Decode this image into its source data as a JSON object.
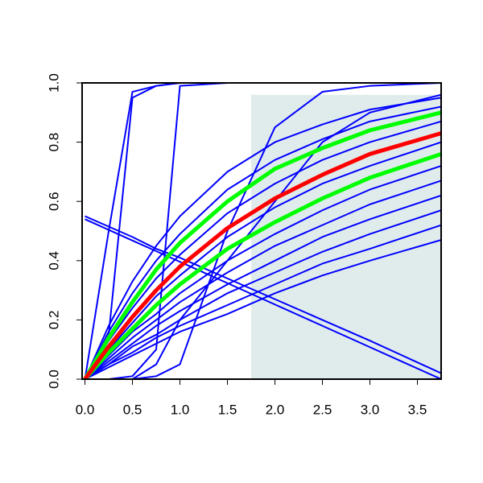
{
  "chart_data": {
    "type": "line",
    "x": [
      0,
      0.25,
      0.5,
      0.75,
      1,
      1.5,
      2,
      2.5,
      3,
      3.75
    ],
    "xlim": [
      -0.03,
      3.75
    ],
    "ylim": [
      0,
      1
    ],
    "xticks": [
      {
        "value": 0,
        "label": "0.0"
      },
      0.5,
      {
        "value": 1,
        "label": "1.0"
      },
      1.5,
      {
        "value": 2,
        "label": "2.0"
      },
      2.5,
      {
        "value": 3,
        "label": "3.0"
      },
      3.5
    ],
    "yticks": [
      {
        "value": 0,
        "label": "0.0"
      },
      0.2,
      0.4,
      0.6,
      0.8,
      {
        "value": 1,
        "label": "1.0"
      }
    ],
    "shaded_region": {
      "xlim": [
        1.75,
        3.75
      ],
      "ylim": [
        0,
        0.96
      ],
      "color": "#e0ecec"
    },
    "series": [
      {
        "color": "#0000ff",
        "values": [
          0,
          0.18,
          0.33,
          0.45,
          0.55,
          0.7,
          0.8,
          0.86,
          0.91,
          0.95
        ]
      },
      {
        "color": "#0000ff",
        "values": [
          0,
          0.16,
          0.29,
          0.4,
          0.49,
          0.64,
          0.74,
          0.81,
          0.87,
          0.92
        ]
      },
      {
        "color": "#0000ff",
        "values": [
          0,
          0.13,
          0.24,
          0.34,
          0.42,
          0.56,
          0.66,
          0.74,
          0.8,
          0.87
        ]
      },
      {
        "color": "#0000ff",
        "values": [
          0,
          0.1,
          0.19,
          0.28,
          0.35,
          0.48,
          0.58,
          0.66,
          0.72,
          0.8
        ]
      },
      {
        "color": "#0000ff",
        "values": [
          0,
          0.08,
          0.16,
          0.22,
          0.29,
          0.4,
          0.49,
          0.57,
          0.64,
          0.72
        ]
      },
      {
        "color": "#0000ff",
        "values": [
          0,
          0.07,
          0.14,
          0.2,
          0.26,
          0.36,
          0.45,
          0.52,
          0.59,
          0.67
        ]
      },
      {
        "color": "#0000ff",
        "values": [
          0,
          0.06,
          0.12,
          0.18,
          0.23,
          0.32,
          0.4,
          0.48,
          0.54,
          0.62
        ]
      },
      {
        "color": "#0000ff",
        "values": [
          0,
          0.05,
          0.11,
          0.15,
          0.2,
          0.29,
          0.36,
          0.43,
          0.49,
          0.57
        ]
      },
      {
        "color": "#0000ff",
        "values": [
          0,
          0.05,
          0.09,
          0.14,
          0.18,
          0.25,
          0.32,
          0.39,
          0.44,
          0.52
        ]
      },
      {
        "color": "#0000ff",
        "values": [
          0,
          0.04,
          0.08,
          0.12,
          0.16,
          0.22,
          0.29,
          0.35,
          0.4,
          0.47
        ]
      },
      {
        "color": "#0000ff",
        "values": [
          0,
          0.5,
          0.97,
          0.99,
          1,
          1,
          1,
          1,
          1,
          1
        ]
      },
      {
        "color": "#0000ff",
        "values": [
          0,
          0.15,
          0.95,
          0.99,
          1,
          1,
          1,
          1,
          1,
          1
        ]
      },
      {
        "color": "#0000ff",
        "values": [
          0,
          0,
          0.01,
          0.1,
          0.99,
          1,
          1,
          1,
          1,
          1
        ]
      },
      {
        "color": "#0000ff",
        "values": [
          0,
          0,
          0,
          0.01,
          0.05,
          0.5,
          0.85,
          0.97,
          0.99,
          1
        ]
      },
      {
        "color": "#0000ff",
        "values": [
          0,
          0,
          0,
          0.05,
          0.2,
          0.4,
          0.6,
          0.8,
          0.9,
          0.96
        ]
      },
      {
        "color": "#0000ff",
        "values": [
          0.54,
          0.504,
          0.468,
          0.432,
          0.396,
          0.324,
          0.252,
          0.18,
          0.108,
          0
        ]
      },
      {
        "color": "#0000ff",
        "values": [
          0.55,
          0.515,
          0.48,
          0.44,
          0.41,
          0.34,
          0.27,
          0.2,
          0.13,
          0.02
        ]
      },
      {
        "color": "#00ff00",
        "line_width": 5,
        "values": [
          0,
          0.14,
          0.26,
          0.37,
          0.46,
          0.6,
          0.71,
          0.78,
          0.84,
          0.9
        ]
      },
      {
        "color": "#00ff00",
        "line_width": 5,
        "values": [
          0,
          0.09,
          0.17,
          0.25,
          0.32,
          0.44,
          0.53,
          0.61,
          0.68,
          0.76
        ]
      },
      {
        "color": "#ff0000",
        "line_width": 5,
        "values": [
          0,
          0.11,
          0.21,
          0.3,
          0.38,
          0.51,
          0.61,
          0.69,
          0.76,
          0.83
        ]
      }
    ]
  }
}
